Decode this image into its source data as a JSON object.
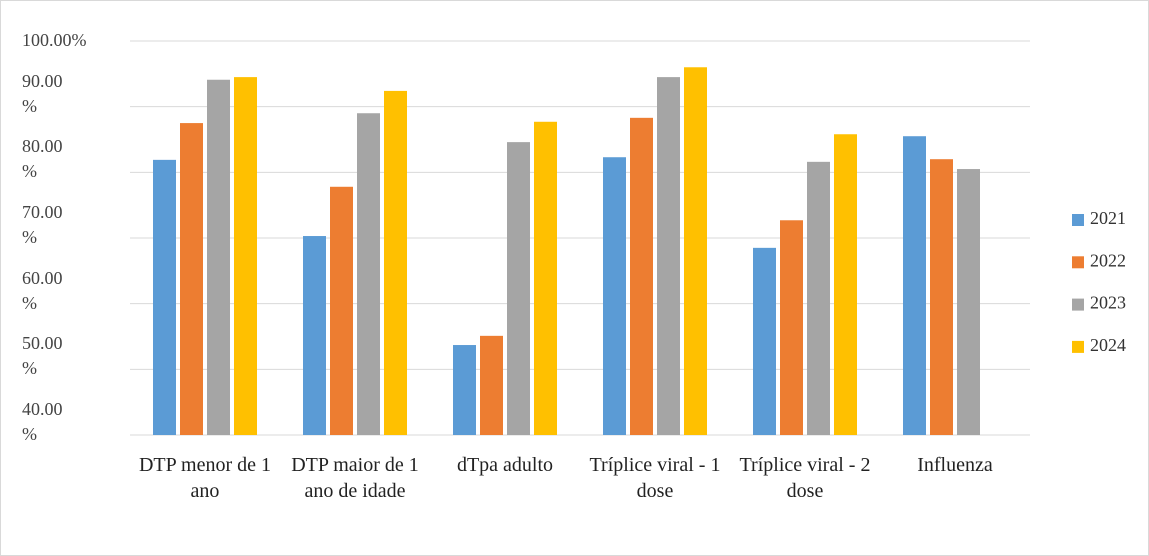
{
  "chart_data": {
    "type": "bar",
    "categories": [
      "DTP menor de 1 ano",
      "DTP maior de 1 ano de idade",
      "dTpa adulto",
      "Tríplice viral - 1 dose",
      "Tríplice viral - 2 dose",
      "Influenza"
    ],
    "series": [
      {
        "name": "2021",
        "color": "#5b9bd5",
        "values": [
          81.9,
          70.3,
          53.7,
          82.3,
          68.5,
          85.5
        ]
      },
      {
        "name": "2022",
        "color": "#ed7d31",
        "values": [
          87.5,
          77.8,
          55.1,
          88.3,
          72.7,
          82.0
        ]
      },
      {
        "name": "2023",
        "color": "#a5a5a5",
        "values": [
          94.1,
          89.0,
          84.6,
          94.5,
          81.6,
          80.5
        ]
      },
      {
        "name": "2024",
        "color": "#ffc000",
        "values": [
          94.5,
          92.4,
          87.7,
          96.0,
          85.8,
          null
        ]
      }
    ],
    "ylim": [
      40,
      100
    ],
    "yticks": [
      {
        "value": 40,
        "label": "40.00 %"
      },
      {
        "value": 50,
        "label": "50.00 %"
      },
      {
        "value": 60,
        "label": "60.00 %"
      },
      {
        "value": 70,
        "label": "70.00 %"
      },
      {
        "value": 80,
        "label": "80.00 %"
      },
      {
        "value": 90,
        "label": "90.00 %"
      },
      {
        "value": 100,
        "label": "100.00%"
      }
    ],
    "grid": true,
    "legend": "right"
  }
}
